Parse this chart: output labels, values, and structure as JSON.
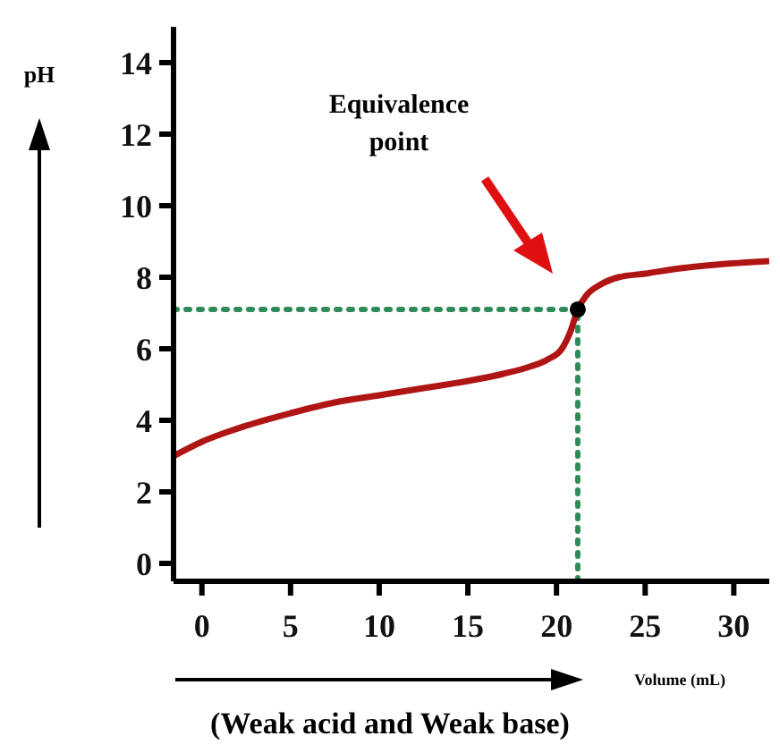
{
  "chart_data": {
    "type": "line",
    "ylabel": "pH",
    "xlabel": "Volume (mL)",
    "annotations": [
      "Equivalence point",
      "(Weak acid and Weak base)"
    ],
    "xlim": [
      -1.6,
      32
    ],
    "ylim": [
      -0.5,
      15
    ],
    "xticks": [
      0,
      5,
      10,
      15,
      20,
      25,
      30
    ],
    "yticks": [
      0,
      2,
      4,
      6,
      8,
      10,
      12,
      14
    ],
    "grid": false,
    "marker": "none",
    "line_style": "solid",
    "series": [
      {
        "color": "#b01515",
        "x": [
          -1.6,
          0,
          2.5,
          5,
          7.5,
          10,
          12.5,
          15,
          17,
          18.5,
          19.5,
          20.3,
          20.8,
          21.2,
          21.7,
          22.5,
          23.5,
          25,
          27,
          29,
          32
        ],
        "values": [
          3.0,
          3.4,
          3.85,
          4.2,
          4.5,
          4.7,
          4.9,
          5.1,
          5.3,
          5.5,
          5.7,
          6.0,
          6.5,
          7.1,
          7.5,
          7.8,
          8.0,
          8.1,
          8.25,
          8.35,
          8.45
        ]
      },
      {
        "type": "scatter",
        "marker": "circle",
        "color": "#000000",
        "x": [
          21.2
        ],
        "values": [
          7.1
        ]
      }
    ],
    "ref_lines": [
      {
        "axis": "y",
        "value": 7.1,
        "color": "#2e8b57",
        "line_style": "dotted"
      },
      {
        "axis": "x",
        "value": 21.2,
        "color": "#2e8b57",
        "line_style": "dotted"
      }
    ]
  }
}
